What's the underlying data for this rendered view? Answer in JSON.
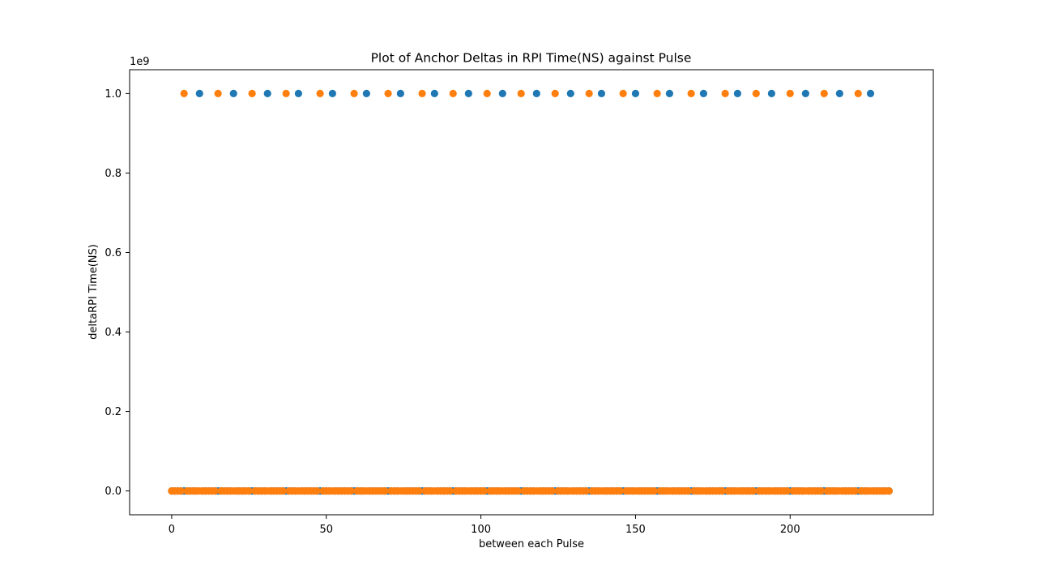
{
  "chart_data": {
    "type": "scatter",
    "title": "Plot of Anchor Deltas in RPI Time(NS) against Pulse",
    "xlabel": "between each Pulse",
    "ylabel": "deltaRPI Time(NS)",
    "y_offset_text": "1e9",
    "xlim": [
      -13.6,
      246.3
    ],
    "ylim": [
      -0.06,
      1.06
    ],
    "y_unit_multiplier": 1000000000,
    "x_ticks": [
      0,
      50,
      100,
      150,
      200
    ],
    "x_tick_labels": [
      "0",
      "50",
      "100",
      "150",
      "200"
    ],
    "y_ticks": [
      0.0,
      0.2,
      0.4,
      0.6,
      0.8,
      1.0
    ],
    "y_tick_labels": [
      "0.0",
      "0.2",
      "0.4",
      "0.6",
      "0.8",
      "1.0"
    ],
    "grid": false,
    "legend": "none",
    "series": [
      {
        "color": "#1f77b4",
        "x_range": [
          0,
          232
        ],
        "high_x": [
          9,
          20,
          31,
          41,
          52,
          63,
          74,
          85,
          96,
          107,
          118,
          129,
          139,
          150,
          161,
          172,
          183,
          194,
          205,
          216,
          226
        ],
        "high_value": 1.0,
        "low_value": 0.0
      },
      {
        "color": "#ff7f0e",
        "x_range": [
          0,
          232
        ],
        "high_x": [
          4,
          15,
          26,
          37,
          48,
          59,
          70,
          81,
          91,
          102,
          113,
          124,
          135,
          146,
          157,
          168,
          179,
          189,
          200,
          211,
          222
        ],
        "high_value": 1.0,
        "low_value": 0.0
      }
    ]
  }
}
